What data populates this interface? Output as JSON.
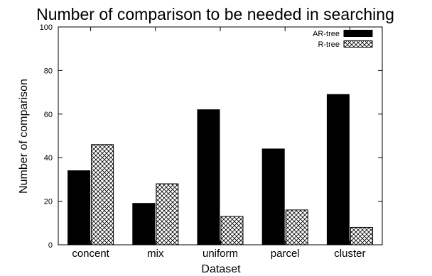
{
  "chart_data": {
    "type": "bar",
    "title": "Number of comparison to be needed in searching",
    "xlabel": "Dataset",
    "ylabel": "Number of comparison",
    "categories": [
      "concent",
      "mix",
      "uniform",
      "parcel",
      "cluster"
    ],
    "series": [
      {
        "name": "AR-tree",
        "values": [
          34,
          19,
          62,
          44,
          69
        ],
        "color": "#000000",
        "pattern": "solid"
      },
      {
        "name": "R-tree",
        "values": [
          46,
          28,
          13,
          16,
          8
        ],
        "color": "#000000",
        "pattern": "crosshatch"
      }
    ],
    "ylim": [
      0,
      100
    ],
    "yticks": [
      0,
      20,
      40,
      60,
      80,
      100
    ],
    "legend_position": "top-right",
    "grid": false
  }
}
